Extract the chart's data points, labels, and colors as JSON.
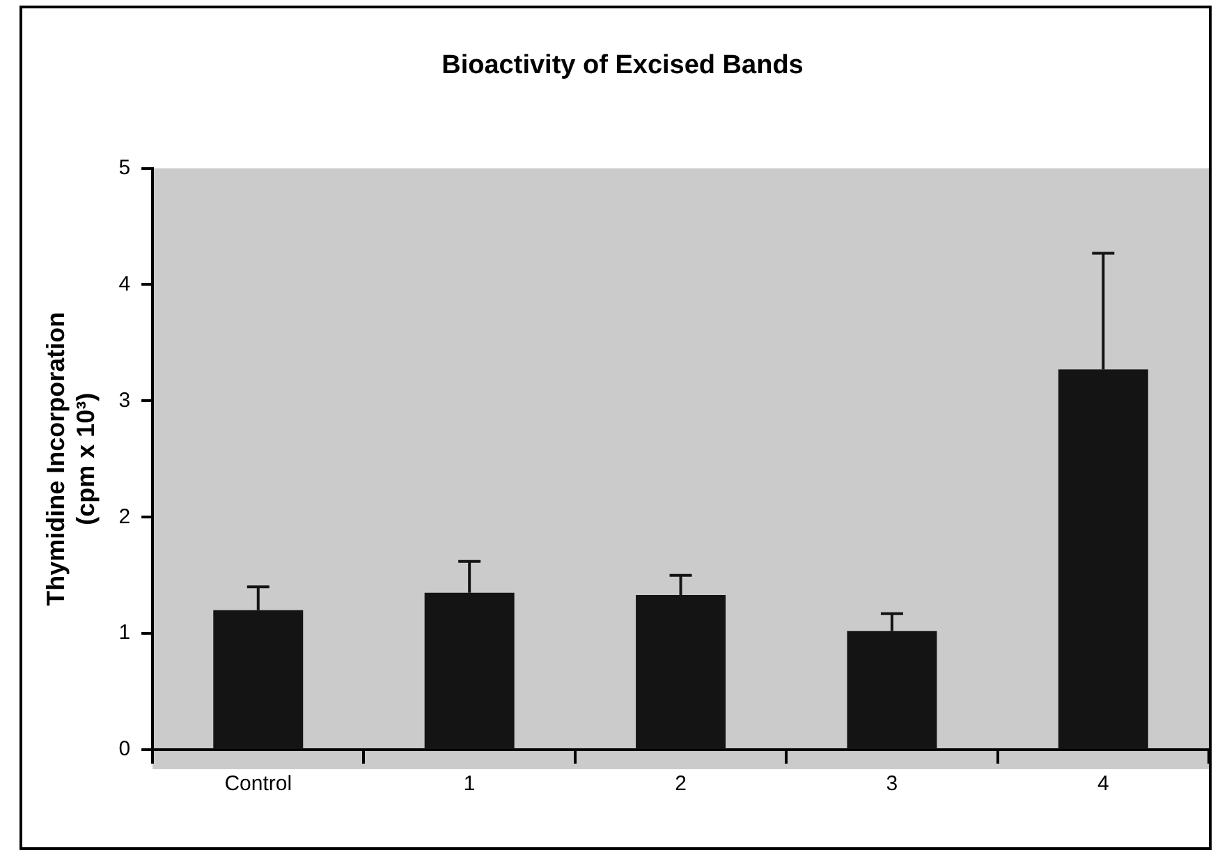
{
  "chart_data": {
    "type": "bar",
    "title": "Bioactivity of Excised Bands",
    "ylabel": "Thymidine Incorporation\n(cpm x 10³)",
    "categories": [
      "Control",
      "1",
      "2",
      "3",
      "4"
    ],
    "values": [
      1.2,
      1.35,
      1.33,
      1.02,
      3.27
    ],
    "errors": [
      [
        1.2,
        1.4
      ],
      [
        1.35,
        1.62
      ],
      [
        1.33,
        1.5
      ],
      [
        1.02,
        1.17
      ],
      [
        3.27,
        4.27
      ]
    ],
    "color": "#141414",
    "ylim": [
      0,
      5
    ],
    "yticks": [
      0,
      1,
      2,
      3,
      4,
      5
    ],
    "grid": false,
    "legend": false
  }
}
